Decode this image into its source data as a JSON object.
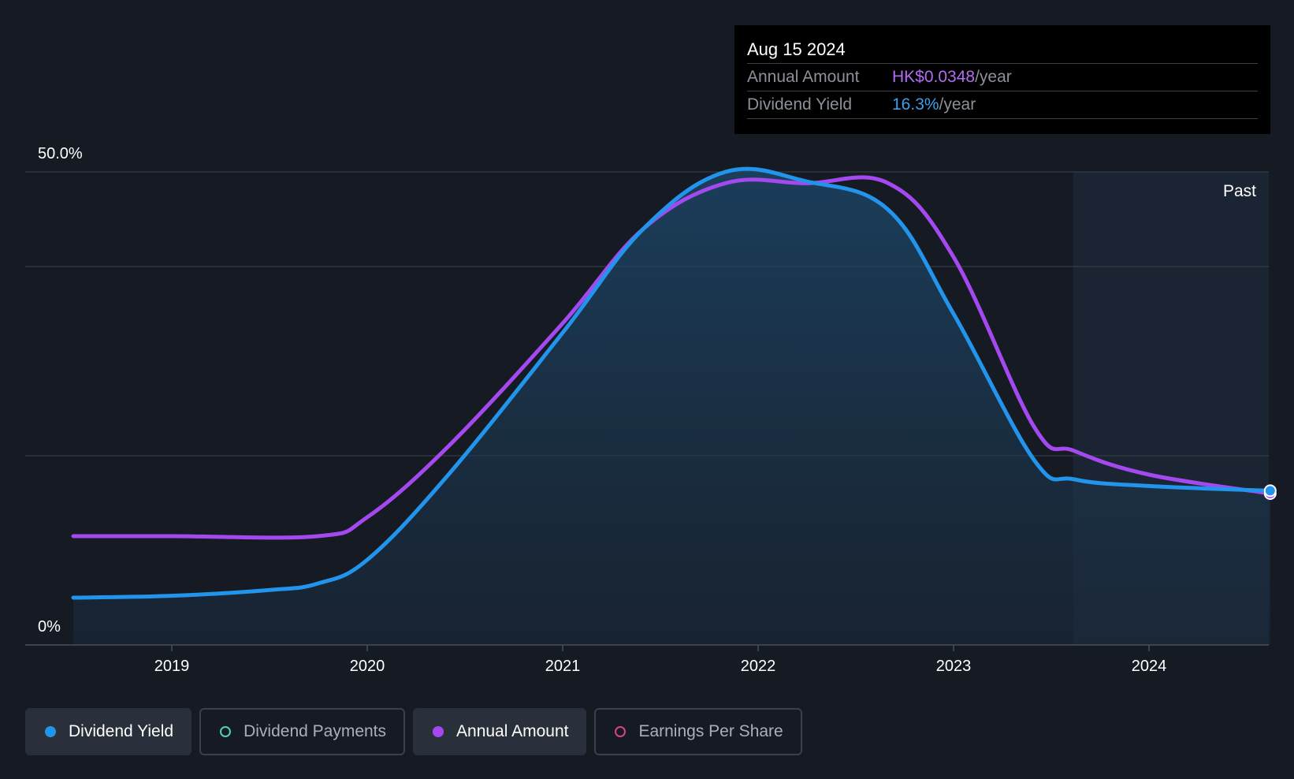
{
  "tooltip": {
    "date": "Aug 15 2024",
    "rows": [
      {
        "label": "Annual Amount",
        "value": "HK$0.0348",
        "unit": "/year"
      },
      {
        "label": "Dividend Yield",
        "value": "16.3%",
        "unit": "/year"
      }
    ]
  },
  "region_label": "Past",
  "legend": [
    {
      "label": "Dividend Yield",
      "color": "#2394eb",
      "active": true
    },
    {
      "label": "Dividend Payments",
      "color": "#4fd1c0",
      "active": false
    },
    {
      "label": "Annual Amount",
      "color": "#a449f0",
      "active": true
    },
    {
      "label": "Earnings Per Share",
      "color": "#d2477f",
      "active": false
    }
  ],
  "chart_data": {
    "type": "line",
    "x_ticks": [
      "2019",
      "2020",
      "2021",
      "2022",
      "2023",
      "2024"
    ],
    "y_ticks": [
      "0%",
      "50.0%"
    ],
    "ylim": [
      0,
      50
    ],
    "grid": true,
    "series": [
      {
        "name": "Dividend Yield",
        "color": "#2394eb",
        "fill": true,
        "points": [
          [
            "2018-07-01",
            5.0
          ],
          [
            "2019-01-01",
            5.2
          ],
          [
            "2019-07-01",
            5.8
          ],
          [
            "2019-10-01",
            6.5
          ],
          [
            "2020-01-01",
            9.0
          ],
          [
            "2020-06-01",
            18.0
          ],
          [
            "2021-01-01",
            33.0
          ],
          [
            "2021-06-01",
            44.0
          ],
          [
            "2021-11-01",
            50.0
          ],
          [
            "2022-04-01",
            49.0
          ],
          [
            "2022-09-01",
            46.0
          ],
          [
            "2023-01-01",
            35.0
          ],
          [
            "2023-06-01",
            19.5
          ],
          [
            "2023-08-15",
            17.5
          ],
          [
            "2024-01-01",
            16.8
          ],
          [
            "2024-08-15",
            16.3
          ]
        ]
      },
      {
        "name": "Annual Amount",
        "color": "#a449f0",
        "fill": false,
        "points": [
          [
            "2018-07-01",
            11.5
          ],
          [
            "2019-01-01",
            11.5
          ],
          [
            "2019-10-01",
            11.5
          ],
          [
            "2020-01-01",
            13.5
          ],
          [
            "2020-06-01",
            21.0
          ],
          [
            "2021-01-01",
            34.0
          ],
          [
            "2021-06-01",
            44.0
          ],
          [
            "2021-11-01",
            48.8
          ],
          [
            "2022-04-01",
            48.8
          ],
          [
            "2022-09-01",
            48.8
          ],
          [
            "2023-01-01",
            41.0
          ],
          [
            "2023-06-01",
            23.0
          ],
          [
            "2023-08-15",
            20.5
          ],
          [
            "2024-01-01",
            18.0
          ],
          [
            "2024-08-15",
            16.0
          ]
        ]
      }
    ]
  }
}
